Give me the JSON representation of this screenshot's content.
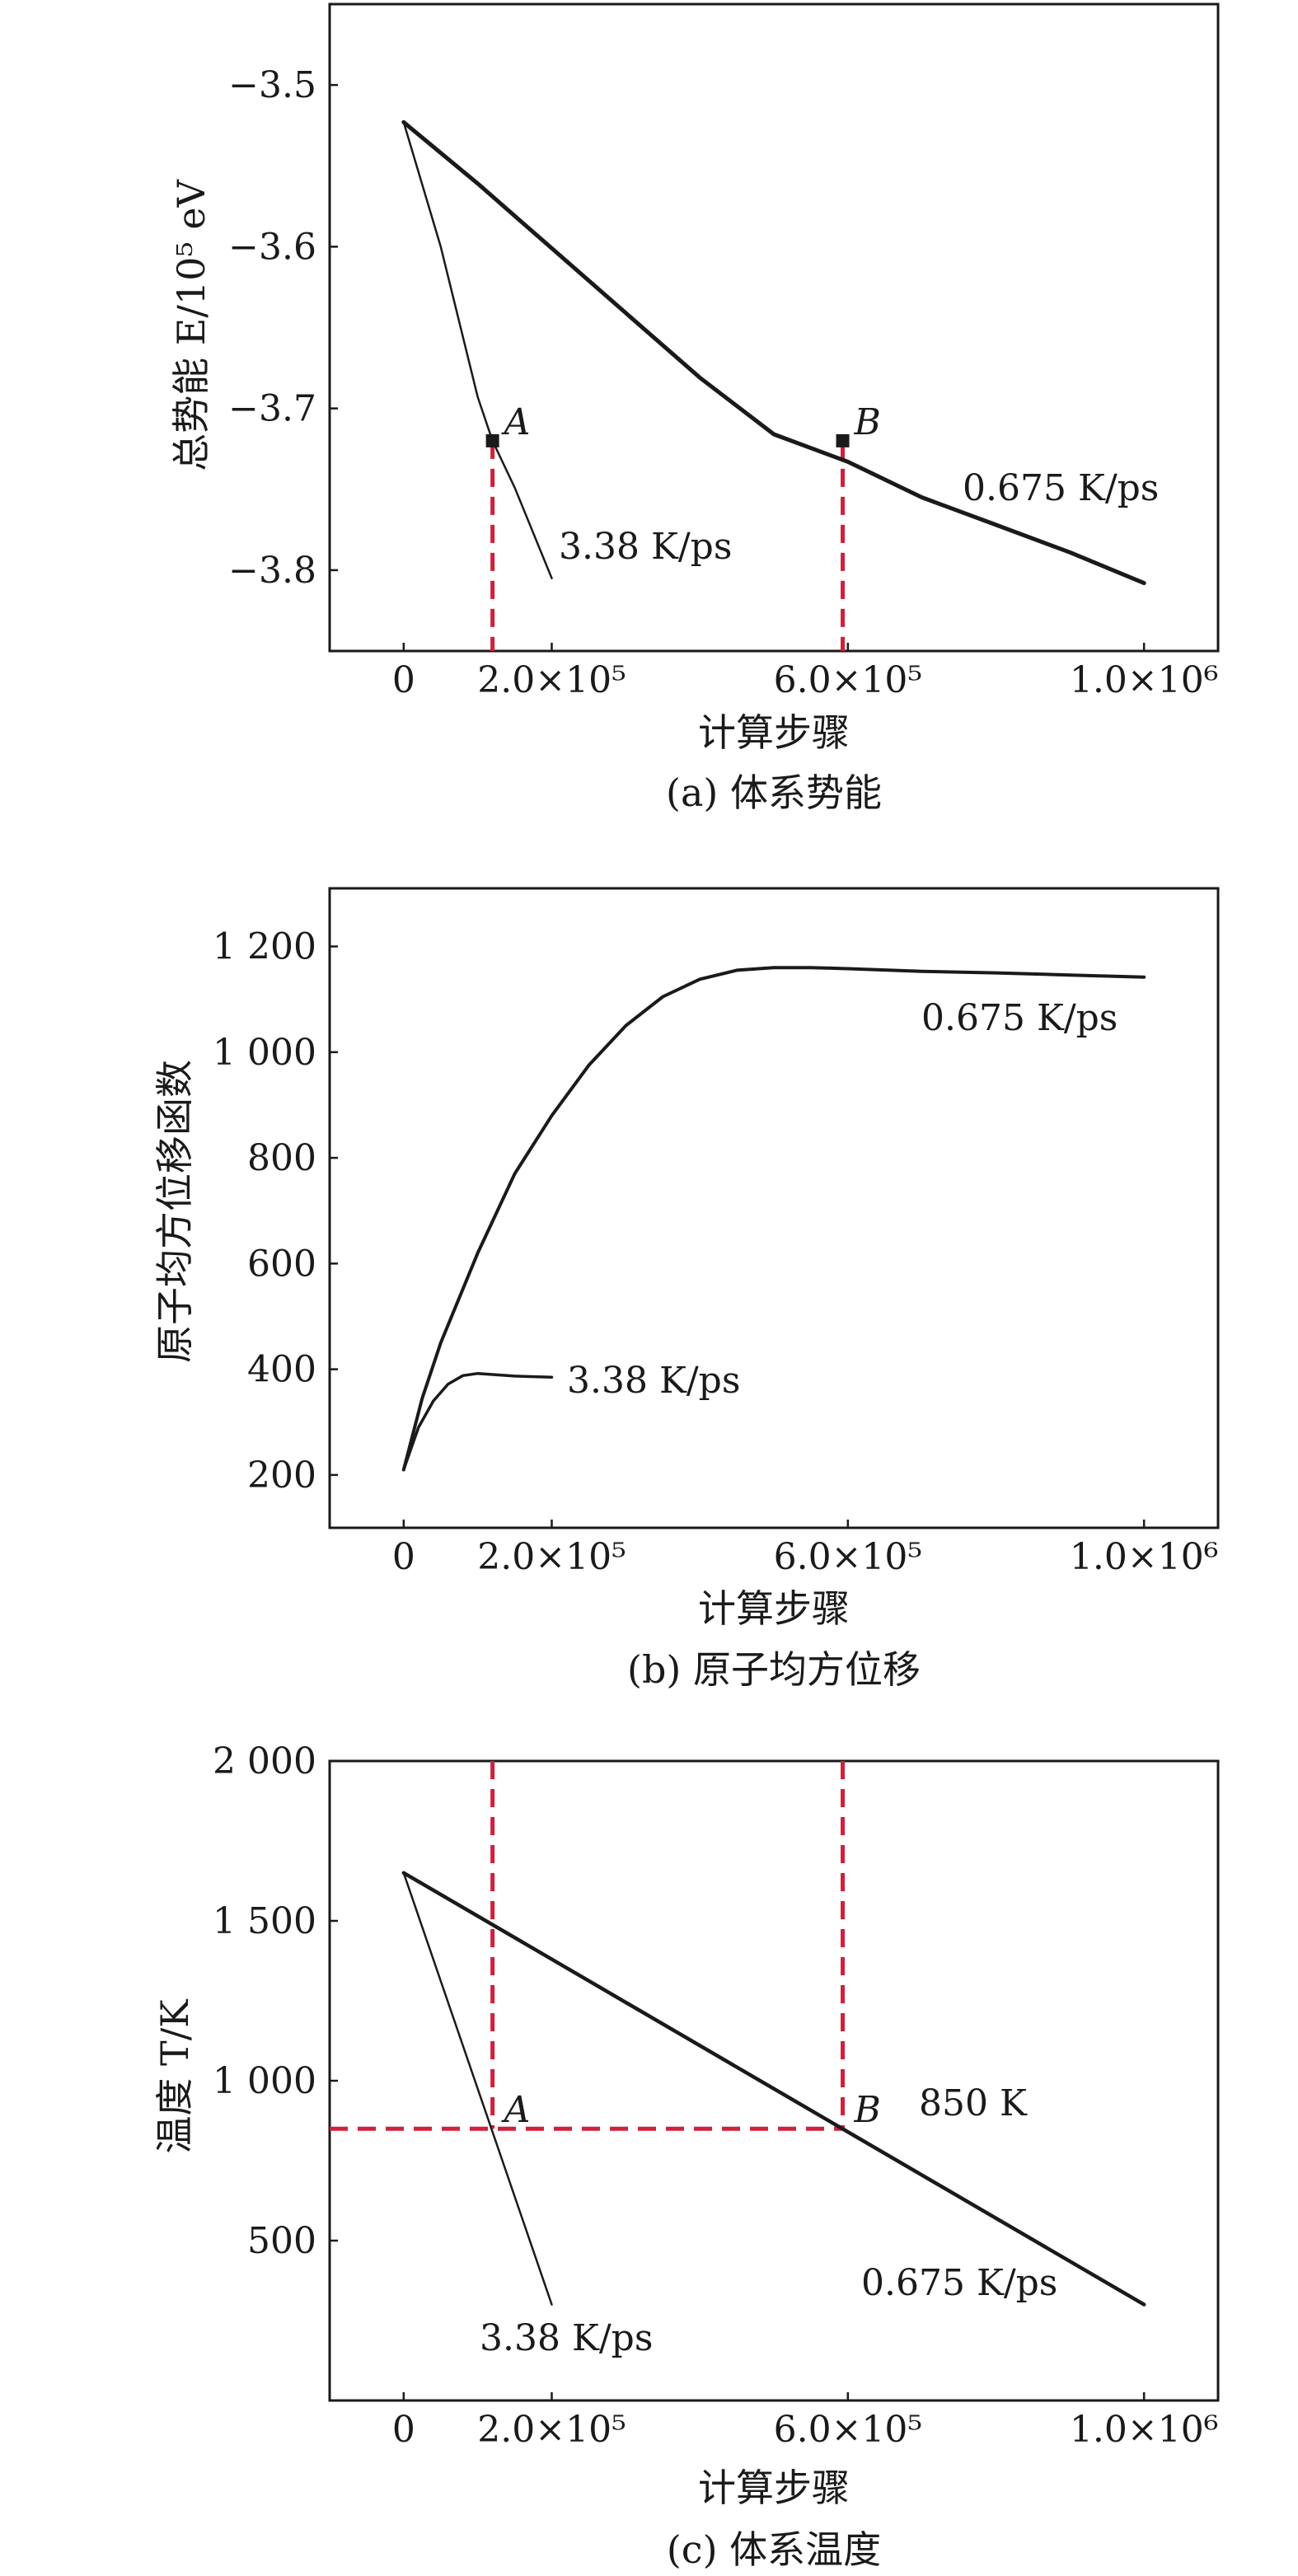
{
  "chart_data": [
    {
      "type": "line",
      "caption": "(a) 体系势能",
      "xlabel": "计算步骤",
      "ylabel": "总势能 E/10⁵ eV",
      "xlim": [
        -100000,
        1100000
      ],
      "ylim": [
        -3.85,
        -3.45
      ],
      "xticks": [
        0,
        200000,
        600000,
        1000000
      ],
      "xtick_labels": [
        "0",
        "2.0×10⁵",
        "6.0×10⁵",
        "1.0×10⁶"
      ],
      "yticks": [
        -3.5,
        -3.6,
        -3.7,
        -3.8
      ],
      "ytick_labels": [
        "−3.5",
        "−3.6",
        "−3.7",
        "−3.8"
      ],
      "series": [
        {
          "name": "0.675 K/ps",
          "x": [
            0,
            100000,
            200000,
            300000,
            400000,
            500000,
            600000,
            700000,
            800000,
            900000,
            1000000
          ],
          "y": [
            -3.523,
            -3.561,
            -3.601,
            -3.641,
            -3.681,
            -3.716,
            -3.733,
            -3.755,
            -3.772,
            -3.789,
            -3.808
          ]
        },
        {
          "name": "3.38 K/ps",
          "x": [
            0,
            50000,
            100000,
            120000,
            150000,
            200000
          ],
          "y": [
            -3.523,
            -3.6,
            -3.693,
            -3.72,
            -3.749,
            -3.805
          ]
        }
      ],
      "markers": [
        {
          "label": "A",
          "x": 120000,
          "y": -3.72
        },
        {
          "label": "B",
          "x": 593000,
          "y": -3.72
        }
      ]
    },
    {
      "type": "line",
      "caption": "(b) 原子均方位移",
      "xlabel": "计算步骤",
      "ylabel": "原子均方位移函数",
      "xlim": [
        -100000,
        1100000
      ],
      "ylim": [
        100,
        1310
      ],
      "xticks": [
        0,
        200000,
        600000,
        1000000
      ],
      "xtick_labels": [
        "0",
        "2.0×10⁵",
        "6.0×10⁵",
        "1.0×10⁶"
      ],
      "yticks": [
        200,
        400,
        600,
        800,
        1000,
        1200
      ],
      "ytick_labels": [
        "200",
        "400",
        "600",
        "800",
        "1 000",
        "1 200"
      ],
      "series": [
        {
          "name": "0.675 K/ps",
          "x": [
            0,
            25000,
            50000,
            100000,
            150000,
            200000,
            250000,
            300000,
            350000,
            400000,
            450000,
            500000,
            550000,
            600000,
            700000,
            800000,
            900000,
            1000000
          ],
          "y": [
            210,
            345,
            450,
            620,
            770,
            880,
            975,
            1050,
            1105,
            1138,
            1155,
            1160,
            1160,
            1158,
            1153,
            1150,
            1146,
            1142
          ]
        },
        {
          "name": "3.38 K/ps",
          "x": [
            0,
            20000,
            40000,
            60000,
            80000,
            100000,
            120000,
            150000,
            200000
          ],
          "y": [
            210,
            290,
            340,
            372,
            388,
            392,
            390,
            387,
            385
          ]
        }
      ]
    },
    {
      "type": "line",
      "caption": "(c) 体系温度",
      "xlabel": "计算步骤",
      "ylabel": "温度 T/K",
      "xlim": [
        -100000,
        1100000
      ],
      "ylim": [
        0,
        2000
      ],
      "xticks": [
        0,
        200000,
        600000,
        1000000
      ],
      "xtick_labels": [
        "0",
        "2.0×10⁵",
        "6.0×10⁵",
        "1.0×10⁶"
      ],
      "yticks": [
        500,
        1000,
        1500,
        2000
      ],
      "ytick_labels": [
        "500",
        "1 000",
        "1 500",
        "2 000"
      ],
      "series": [
        {
          "name": "0.675 K/ps",
          "x": [
            0,
            1000000
          ],
          "y": [
            1650,
            300
          ]
        },
        {
          "name": "3.38 K/ps",
          "x": [
            0,
            200000
          ],
          "y": [
            1650,
            300
          ]
        }
      ],
      "markers": [
        {
          "label": "A",
          "x": 120000,
          "y": 850
        },
        {
          "label": "B",
          "x": 593000,
          "y": 850
        }
      ],
      "annotations": [
        "850 K"
      ]
    }
  ],
  "colors": {
    "line": "#1a1a1a",
    "guide": "#d0203a",
    "axis": "#1a1a1a"
  }
}
